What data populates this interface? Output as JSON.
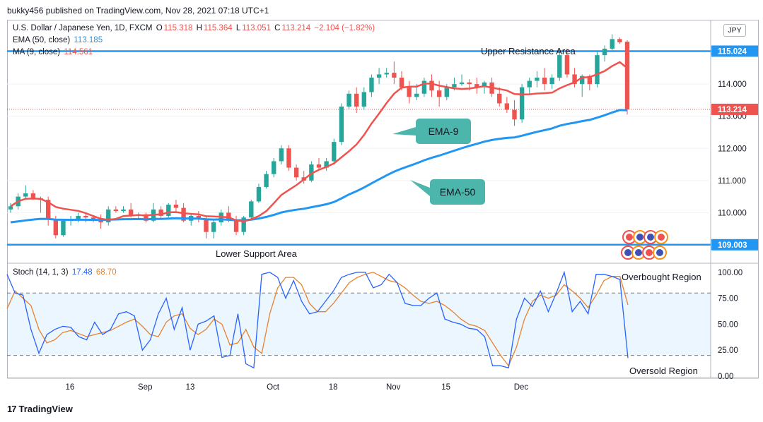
{
  "header": {
    "publisher_line": "bukky456 published on TradingView.com, Nov 28, 2021 07:18 UTC+1"
  },
  "legend": {
    "symbol_label": "U.S. Dollar / Japanese Yen, 1D, FXCM",
    "o_key": "O",
    "o_val": "115.318",
    "h_key": "H",
    "h_val": "115.364",
    "l_key": "L",
    "l_val": "113.051",
    "c_key": "C",
    "c_val": "113.214",
    "change": "−2.104 (−1.82%)",
    "ema_label": "EMA (50, close)",
    "ema_val": "113.185",
    "ma_label": "MA (9, close)",
    "ma_val": "114.561",
    "stoch_label": "Stoch (14, 1, 3)",
    "stoch_k": "17.48",
    "stoch_d": "68.70"
  },
  "currency_badge": "JPY",
  "annotations": {
    "upper": "Upper Resistance Area",
    "lower": "Lower Support Area",
    "ema9": "EMA-9",
    "ema50": "EMA-50",
    "overbought": "Overbought Region",
    "oversold": "Oversold Region"
  },
  "footer": {
    "brand": "TradingView",
    "icon": "tv-logo-icon"
  },
  "colors": {
    "up": "#26a69a",
    "down": "#ef5350",
    "ema50": "#2196f3",
    "ma9": "#ef5350",
    "stoch_k": "#2962ff",
    "stoch_d": "#e8822e",
    "levels": "#2196f3",
    "callout": "#4db6ac"
  },
  "chart_data": [
    {
      "type": "candlestick",
      "title": "U.S. Dollar / Japanese Yen, 1D, FXCM",
      "x_ticks": [
        "16",
        "Sep",
        "13",
        "Oct",
        "18",
        "Nov",
        "15",
        "Dec"
      ],
      "y_ticks": [
        110.0,
        111.0,
        112.0,
        113.0,
        114.0
      ],
      "ylim": [
        108.45,
        116.0
      ],
      "horizontal_levels": [
        {
          "name": "Upper Resistance Area",
          "value": 115.024
        },
        {
          "name": "Lower Support Area",
          "value": 109.003
        }
      ],
      "last_price": 113.214,
      "candles": [
        {
          "o": 110.1,
          "h": 110.3,
          "l": 110.0,
          "c": 110.2
        },
        {
          "o": 110.2,
          "h": 110.6,
          "l": 110.1,
          "c": 110.5
        },
        {
          "o": 110.5,
          "h": 110.85,
          "l": 110.4,
          "c": 110.6
        },
        {
          "o": 110.6,
          "h": 110.7,
          "l": 110.4,
          "c": 110.45
        },
        {
          "o": 110.45,
          "h": 110.5,
          "l": 110.0,
          "c": 110.4
        },
        {
          "o": 110.4,
          "h": 110.5,
          "l": 109.6,
          "c": 109.8
        },
        {
          "o": 109.8,
          "h": 109.9,
          "l": 109.2,
          "c": 109.3
        },
        {
          "o": 109.3,
          "h": 109.8,
          "l": 109.25,
          "c": 109.75
        },
        {
          "o": 109.75,
          "h": 109.9,
          "l": 109.6,
          "c": 109.8
        },
        {
          "o": 109.8,
          "h": 110.0,
          "l": 109.7,
          "c": 109.9
        },
        {
          "o": 109.9,
          "h": 110.0,
          "l": 109.7,
          "c": 109.85
        },
        {
          "o": 109.85,
          "h": 109.9,
          "l": 109.7,
          "c": 109.8
        },
        {
          "o": 109.8,
          "h": 109.95,
          "l": 109.5,
          "c": 109.7
        },
        {
          "o": 109.7,
          "h": 110.2,
          "l": 109.6,
          "c": 110.1
        },
        {
          "o": 110.1,
          "h": 110.2,
          "l": 110.0,
          "c": 110.05
        },
        {
          "o": 110.05,
          "h": 110.2,
          "l": 110.0,
          "c": 110.1
        },
        {
          "o": 110.1,
          "h": 110.3,
          "l": 109.85,
          "c": 109.9
        },
        {
          "o": 109.9,
          "h": 110.0,
          "l": 109.8,
          "c": 109.95
        },
        {
          "o": 109.95,
          "h": 110.0,
          "l": 109.7,
          "c": 109.75
        },
        {
          "o": 109.75,
          "h": 110.3,
          "l": 109.7,
          "c": 110.1
        },
        {
          "o": 110.1,
          "h": 110.2,
          "l": 109.8,
          "c": 109.9
        },
        {
          "o": 109.9,
          "h": 110.3,
          "l": 109.85,
          "c": 110.25
        },
        {
          "o": 110.25,
          "h": 110.4,
          "l": 110.0,
          "c": 110.15
        },
        {
          "o": 110.15,
          "h": 110.3,
          "l": 109.7,
          "c": 109.75
        },
        {
          "o": 109.75,
          "h": 109.95,
          "l": 109.6,
          "c": 109.9
        },
        {
          "o": 109.9,
          "h": 110.05,
          "l": 109.7,
          "c": 109.8
        },
        {
          "o": 109.8,
          "h": 109.9,
          "l": 109.2,
          "c": 109.4
        },
        {
          "o": 109.4,
          "h": 109.8,
          "l": 109.2,
          "c": 109.7
        },
        {
          "o": 109.7,
          "h": 110.1,
          "l": 109.6,
          "c": 110.0
        },
        {
          "o": 110.0,
          "h": 110.2,
          "l": 109.7,
          "c": 109.75
        },
        {
          "o": 109.75,
          "h": 109.9,
          "l": 109.3,
          "c": 109.4
        },
        {
          "o": 109.4,
          "h": 109.9,
          "l": 109.3,
          "c": 109.85
        },
        {
          "o": 109.85,
          "h": 110.4,
          "l": 109.8,
          "c": 110.35
        },
        {
          "o": 110.35,
          "h": 110.9,
          "l": 110.3,
          "c": 110.8
        },
        {
          "o": 110.8,
          "h": 111.3,
          "l": 110.75,
          "c": 111.2
        },
        {
          "o": 111.2,
          "h": 111.7,
          "l": 111.1,
          "c": 111.6
        },
        {
          "o": 111.6,
          "h": 112.1,
          "l": 111.5,
          "c": 112.0
        },
        {
          "o": 112.0,
          "h": 112.1,
          "l": 111.3,
          "c": 111.4
        },
        {
          "o": 111.4,
          "h": 111.5,
          "l": 111.0,
          "c": 111.1
        },
        {
          "o": 111.1,
          "h": 111.3,
          "l": 110.9,
          "c": 111.0
        },
        {
          "o": 111.0,
          "h": 111.6,
          "l": 110.95,
          "c": 111.5
        },
        {
          "o": 111.5,
          "h": 111.7,
          "l": 111.3,
          "c": 111.4
        },
        {
          "o": 111.4,
          "h": 111.7,
          "l": 111.3,
          "c": 111.6
        },
        {
          "o": 111.6,
          "h": 112.3,
          "l": 111.5,
          "c": 112.2
        },
        {
          "o": 112.2,
          "h": 113.4,
          "l": 112.1,
          "c": 113.3
        },
        {
          "o": 113.3,
          "h": 113.8,
          "l": 113.2,
          "c": 113.7
        },
        {
          "o": 113.7,
          "h": 113.9,
          "l": 113.1,
          "c": 113.3
        },
        {
          "o": 113.3,
          "h": 113.9,
          "l": 113.2,
          "c": 113.75
        },
        {
          "o": 113.75,
          "h": 114.3,
          "l": 113.6,
          "c": 114.2
        },
        {
          "o": 114.2,
          "h": 114.5,
          "l": 114.0,
          "c": 114.3
        },
        {
          "o": 114.3,
          "h": 114.5,
          "l": 114.2,
          "c": 114.35
        },
        {
          "o": 114.35,
          "h": 114.7,
          "l": 114.0,
          "c": 114.2
        },
        {
          "o": 114.2,
          "h": 114.4,
          "l": 113.8,
          "c": 113.9
        },
        {
          "o": 113.9,
          "h": 114.1,
          "l": 113.4,
          "c": 113.6
        },
        {
          "o": 113.6,
          "h": 114.0,
          "l": 113.5,
          "c": 113.7
        },
        {
          "o": 113.7,
          "h": 114.2,
          "l": 113.6,
          "c": 114.1
        },
        {
          "o": 114.1,
          "h": 114.3,
          "l": 113.6,
          "c": 113.8
        },
        {
          "o": 113.8,
          "h": 114.1,
          "l": 113.3,
          "c": 113.6
        },
        {
          "o": 113.6,
          "h": 114.0,
          "l": 113.5,
          "c": 113.9
        },
        {
          "o": 113.9,
          "h": 114.2,
          "l": 113.8,
          "c": 114.0
        },
        {
          "o": 114.0,
          "h": 114.3,
          "l": 113.95,
          "c": 114.05
        },
        {
          "o": 114.05,
          "h": 114.15,
          "l": 113.8,
          "c": 114.0
        },
        {
          "o": 114.0,
          "h": 114.2,
          "l": 113.7,
          "c": 113.9
        },
        {
          "o": 113.9,
          "h": 114.1,
          "l": 113.7,
          "c": 114.05
        },
        {
          "o": 114.05,
          "h": 114.2,
          "l": 113.6,
          "c": 113.7
        },
        {
          "o": 113.7,
          "h": 113.9,
          "l": 113.3,
          "c": 113.4
        },
        {
          "o": 113.4,
          "h": 113.6,
          "l": 113.1,
          "c": 113.2
        },
        {
          "o": 113.2,
          "h": 113.5,
          "l": 112.7,
          "c": 112.9
        },
        {
          "o": 112.9,
          "h": 114.0,
          "l": 112.8,
          "c": 113.9
        },
        {
          "o": 113.9,
          "h": 114.2,
          "l": 113.7,
          "c": 114.1
        },
        {
          "o": 114.1,
          "h": 114.4,
          "l": 113.9,
          "c": 114.2
        },
        {
          "o": 114.2,
          "h": 114.5,
          "l": 113.8,
          "c": 114.0
        },
        {
          "o": 114.0,
          "h": 114.3,
          "l": 113.85,
          "c": 114.2
        },
        {
          "o": 114.2,
          "h": 115.0,
          "l": 114.1,
          "c": 114.9
        },
        {
          "o": 114.9,
          "h": 115.1,
          "l": 114.2,
          "c": 114.3
        },
        {
          "o": 114.3,
          "h": 114.5,
          "l": 113.9,
          "c": 114.0
        },
        {
          "o": 114.0,
          "h": 114.3,
          "l": 113.6,
          "c": 114.25
        },
        {
          "o": 114.25,
          "h": 114.3,
          "l": 113.8,
          "c": 114.0
        },
        {
          "o": 114.0,
          "h": 115.0,
          "l": 113.9,
          "c": 114.9
        },
        {
          "o": 114.9,
          "h": 115.2,
          "l": 114.7,
          "c": 115.1
        },
        {
          "o": 115.1,
          "h": 115.55,
          "l": 115.0,
          "c": 115.4
        },
        {
          "o": 115.4,
          "h": 115.45,
          "l": 115.25,
          "c": 115.3
        },
        {
          "o": 115.318,
          "h": 115.364,
          "l": 113.051,
          "c": 113.214
        }
      ],
      "series": [
        {
          "name": "EMA (50, close)",
          "kind": "ema50",
          "last": 113.185
        },
        {
          "name": "MA (9, close)",
          "kind": "ma9",
          "last": 114.561
        }
      ]
    },
    {
      "type": "line",
      "title": "Stoch (14, 1, 3)",
      "y_ticks": [
        0.0,
        25.0,
        50.0,
        75.0,
        100.0
      ],
      "ylim": [
        -2,
        108
      ],
      "bands": [
        20,
        80
      ],
      "series": [
        {
          "name": "%K",
          "values": [
            98,
            80,
            78,
            45,
            22,
            40,
            45,
            48,
            47,
            38,
            35,
            52,
            40,
            45,
            60,
            62,
            58,
            25,
            35,
            60,
            75,
            45,
            66,
            25,
            50,
            53,
            58,
            18,
            20,
            60,
            12,
            8,
            98,
            100,
            95,
            75,
            92,
            72,
            60,
            62,
            72,
            82,
            95,
            98,
            100,
            100,
            85,
            88,
            98,
            90,
            70,
            68,
            68,
            75,
            80,
            55,
            52,
            50,
            46,
            45,
            38,
            10,
            10,
            8,
            55,
            75,
            67,
            82,
            62,
            80,
            100,
            62,
            72,
            60,
            98,
            98,
            96,
            93,
            17.48
          ]
        },
        {
          "name": "%D",
          "values": [
            65,
            82,
            75,
            68,
            45,
            32,
            35,
            42,
            44,
            41,
            38,
            40,
            42,
            44,
            48,
            52,
            55,
            48,
            40,
            38,
            52,
            58,
            60,
            46,
            40,
            45,
            55,
            50,
            30,
            32,
            45,
            28,
            22,
            60,
            85,
            95,
            95,
            88,
            70,
            62,
            62,
            70,
            80,
            90,
            95,
            98,
            100,
            96,
            92,
            90,
            85,
            78,
            72,
            70,
            72,
            68,
            62,
            55,
            50,
            48,
            44,
            32,
            20,
            10,
            28,
            55,
            72,
            78,
            75,
            78,
            88,
            82,
            75,
            66,
            78,
            92,
            96,
            96,
            68.7
          ]
        }
      ]
    }
  ]
}
